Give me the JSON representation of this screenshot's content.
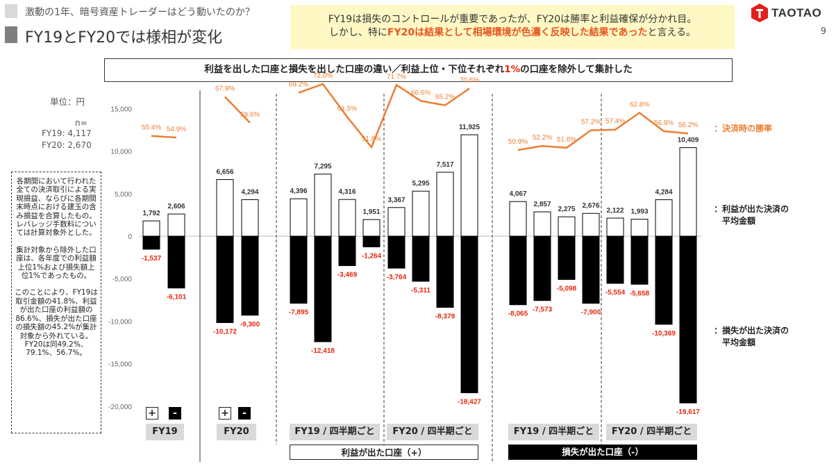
{
  "header": {
    "kicker": "激動の1年、暗号資産トレーダーはどう動いたのか？",
    "title": "FY19とFY20では様相が変化",
    "message_line1": "FY19は損失のコントロールが重要であったが、FY20は勝率と利益確保が分かれ目。",
    "message_line2_pre": "しかし、特に",
    "message_line2_hl": "FY20は結果として相場環境が色濃く反映した結果であった",
    "message_line2_post": "と言える。",
    "logo": "TAOTAO",
    "page_number": "9"
  },
  "subtitle": {
    "pre": "利益を出した口座と損失を出した口座の違い／利益上位・下位それぞれ",
    "hl": "1%",
    "post": "の口座を除外して集計した"
  },
  "left": {
    "unit": "単位：円",
    "n_label": "n=",
    "n_fy19": "FY19: 4,117",
    "n_fy20": "FY20: 2,670"
  },
  "note": {
    "p1": "各期間において行われた全ての決済取引による実現損益、ならびに各期間末時点における建玉の含み損益を合算したもの。レバレッジ手数料については計算対象外とした。",
    "p2": "集計対象から除外した口座は、各年度での利益額上位1%および損失額上位1%であったもの。",
    "p3": "このことにより、FY19は取引金額の41.8%、利益が出た口座の利益額の86.6%、損失が出た口座の損失額の45.2%が集計対象から外れている。FY20は同49.2%、79.1%、56.7%。"
  },
  "legend": {
    "winrate": "：決済時の勝率",
    "profit_l1": "：利益が出た決済の",
    "profit_l2": "　平均金額",
    "loss_l1": "：損失が出た決済の",
    "loss_l2": "　平均金額"
  },
  "signs": {
    "plus": "+",
    "minus": "-"
  },
  "groups": {
    "fy19": "FY19",
    "fy20": "FY20",
    "q_fy19_profit": "FY19 / 四半期ごと",
    "q_fy20_profit": "FY20 / 四半期ごと",
    "q_fy19_loss": "FY19 / 四半期ごと",
    "q_fy20_loss": "FY20 / 四半期ごと",
    "profit_accounts": "利益が出た口座（+）",
    "loss_accounts": "損失が出た口座（-）"
  },
  "colors": {
    "winrate": "#ed7d31",
    "profit_fill": "#ffffff",
    "loss_fill": "#000000",
    "negative_label": "#e8260c"
  },
  "chart_data": {
    "type": "bar",
    "ylim": [
      -20000,
      15000
    ],
    "yticks": [
      "15,000",
      "10,000",
      "5,000",
      "0",
      "-5,000",
      "-10,000",
      "-15,000",
      "-20,000"
    ],
    "ytick_values": [
      15000,
      10000,
      5000,
      0,
      -5000,
      -10000,
      -15000,
      -20000
    ],
    "series": [
      {
        "name": "利益が出た決済の平均金額",
        "values": [
          1792,
          2606,
          6656,
          4294,
          4396,
          7295,
          4316,
          1951,
          3367,
          5295,
          7517,
          11925,
          4067,
          2857,
          2275,
          2676,
          2122,
          1993,
          4284,
          10409
        ],
        "labels": [
          "1,792",
          "2,606",
          "6,656",
          "4,294",
          "4,396",
          "7,295",
          "4,316",
          "1,951",
          "3,367",
          "5,295",
          "7,517",
          "11,925",
          "4,067",
          "2,857",
          "2,275",
          "2,676",
          "2,122",
          "1,993",
          "4,284",
          "10,409"
        ]
      },
      {
        "name": "損失が出た決済の平均金額",
        "values": [
          -1537,
          -6101,
          -10172,
          -9300,
          -7895,
          -12418,
          -3469,
          -1264,
          -3764,
          -5311,
          -8379,
          -18427,
          -8065,
          -7573,
          -5098,
          -7900,
          -5554,
          -5658,
          -10369,
          -19617
        ],
        "labels": [
          "-1,537",
          "-6,101",
          "-10,172",
          "-9,300",
          "-7,895",
          "-12,418",
          "-3,469",
          "-1,264",
          "-3,764",
          "-5,311",
          "-8,379",
          "-18,427",
          "-8,065",
          "-7,573",
          "-5,098",
          "-7,900",
          "-5,554",
          "-5,658",
          "-10,369",
          "-19,617"
        ]
      },
      {
        "name": "決済時の勝率",
        "values": [
          55.4,
          54.9,
          67.9,
          59.6,
          69.2,
          72.0,
          61.5,
          51.8,
          71.7,
          66.6,
          65.2,
          70.6,
          50.9,
          52.2,
          51.6,
          57.2,
          57.4,
          62.8,
          56.9,
          56.2
        ],
        "labels": [
          "55.4%",
          "54.9%",
          "67.9%",
          "59.6%",
          "69.2%",
          "72.0%",
          "61.5%",
          "51.8%",
          "71.7%",
          "66.6%",
          "65.2%",
          "70.6%",
          "50.9%",
          "52.2%",
          "51.6%",
          "57.2%",
          "57.4%",
          "62.8%",
          "56.9%",
          "56.2%"
        ]
      }
    ],
    "line_segments": [
      [
        0,
        1
      ],
      [
        2,
        3
      ],
      [
        4,
        5,
        6,
        7,
        8,
        9,
        10,
        11
      ],
      [
        12,
        13,
        14,
        15,
        16,
        17,
        18,
        19
      ]
    ]
  }
}
